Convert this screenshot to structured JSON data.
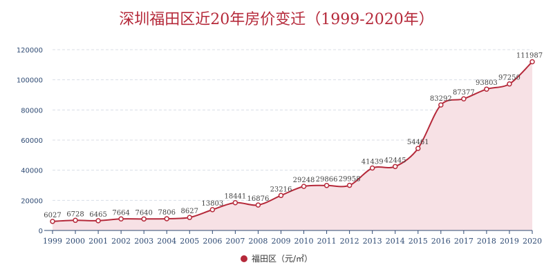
{
  "chart_data": {
    "type": "line",
    "title": "深圳福田区近20年房价变迁（1999-2020年）",
    "categories": [
      "1999",
      "2000",
      "2001",
      "2002",
      "2003",
      "2004",
      "2005",
      "2006",
      "2007",
      "2008",
      "2009",
      "2010",
      "2011",
      "2012",
      "2013",
      "2014",
      "2015",
      "2016",
      "2017",
      "2018",
      "2019",
      "2020"
    ],
    "series": [
      {
        "name": "福田区（元/㎡）",
        "values": [
          6027,
          6728,
          6465,
          7664,
          7640,
          7806,
          8627,
          13803,
          18441,
          16876,
          23216,
          29248,
          29866,
          29958,
          41439,
          42445,
          54461,
          83292,
          87377,
          93803,
          97250,
          111987
        ],
        "labels": [
          "6027",
          "6728",
          "6465",
          "7664",
          "7640",
          "7806",
          "8627",
          "13803",
          "18441",
          "16876",
          "23216",
          "29248",
          "29866",
          "29958",
          "41439",
          "42445",
          "54461",
          "83292",
          "87377",
          "93803",
          "97250",
          "111987"
        ]
      }
    ],
    "yticks": [
      "0",
      "20000",
      "40000",
      "60000",
      "80000",
      "100000",
      "120000"
    ],
    "ylim": [
      0,
      120000
    ],
    "grid": true,
    "legend_position": "bottom",
    "colors": {
      "line": "#b5293a",
      "area": "#f7e1e5",
      "axis": "#2e4a73",
      "grid": "#d8dde6"
    }
  }
}
